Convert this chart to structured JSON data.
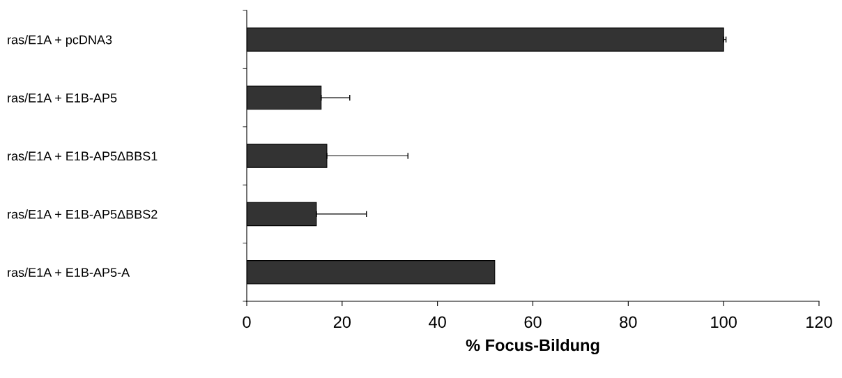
{
  "chart_data": {
    "type": "bar",
    "orientation": "horizontal",
    "xlabel": "% Focus-Bildung",
    "categories": [
      "ras/E1A + pcDNA3",
      "ras/E1A + E1B-AP5",
      "ras/E1A + E1B-AP5ΔBBS1",
      "ras/E1A + E1B-AP5ΔBBS2",
      "ras/E1A + E1B-AP5-A"
    ],
    "values": [
      100,
      15.6,
      16.8,
      14.6,
      52
    ],
    "errors": [
      0.5,
      6,
      17,
      10.5,
      null
    ],
    "color": "#333333",
    "xlim": [
      0,
      120
    ],
    "xticks": [
      0,
      20,
      40,
      60,
      80,
      100,
      120
    ],
    "grid": false
  }
}
